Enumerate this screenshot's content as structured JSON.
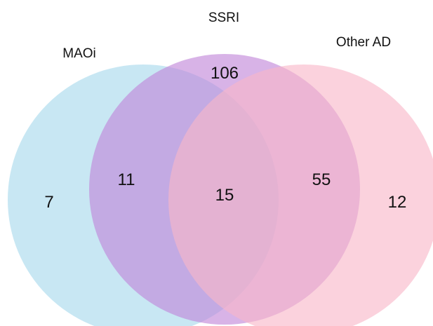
{
  "venn": {
    "sets": [
      {
        "id": "maoi",
        "label": "MAOi",
        "color": "#a7d8ec"
      },
      {
        "id": "ssri",
        "label": "SSRI",
        "color": "#c084d8"
      },
      {
        "id": "other",
        "label": "Other AD",
        "color": "#f8b6c8"
      }
    ],
    "regions": {
      "maoi_only": "7",
      "maoi_ssri": "11",
      "ssri_only": "106",
      "all_three": "15",
      "ssri_other": "55",
      "other_only": "12"
    }
  }
}
